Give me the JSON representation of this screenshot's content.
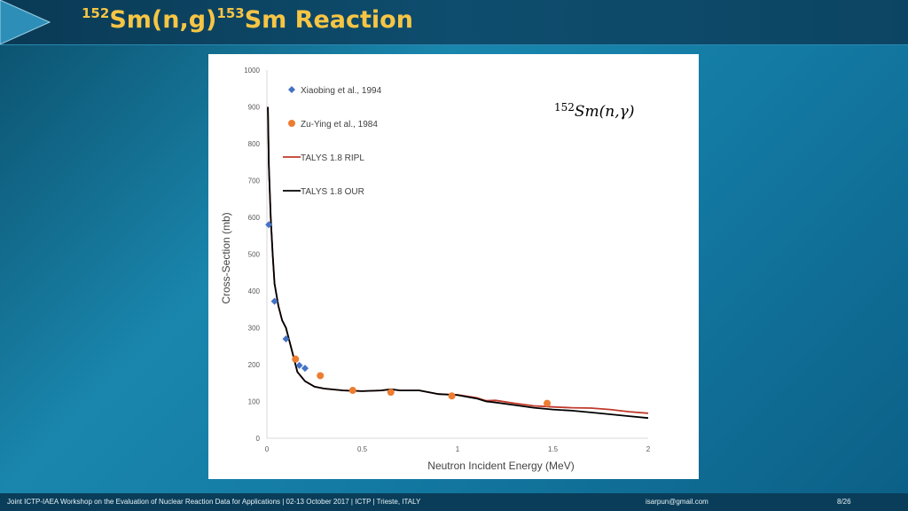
{
  "slide": {
    "title": {
      "pre_sup": "152",
      "part1": "Sm(n,g)",
      "mid_sup": "153",
      "part2": "Sm Reaction"
    },
    "footer": {
      "left": "Joint ICTP-IAEA Workshop on the Evaluation of Nuclear Reaction Data for Applications |   02-13 October 2017   |   ICTP   |   Trieste, ITALY",
      "email": "isarpun@gmail.com",
      "page": "8/26"
    },
    "colors": {
      "title": "#f6c544",
      "accent": "#1a86ad"
    }
  },
  "chart_data": {
    "type": "scatter",
    "title": "",
    "annotation": {
      "sup": "152",
      "text": "Sm(n,γ)"
    },
    "xlabel": "Neutron Incident Energy (MeV)",
    "ylabel": "Cross-Section (mb)",
    "xlim": [
      0,
      2
    ],
    "ylim": [
      0,
      1000
    ],
    "xticks": [
      "0",
      "0.5",
      "1",
      "1.5",
      "2"
    ],
    "yticks": [
      "0",
      "100",
      "200",
      "300",
      "400",
      "500",
      "600",
      "700",
      "800",
      "900",
      "1000"
    ],
    "grid": false,
    "legend": "top-left",
    "series": [
      {
        "name": "Xiaobing et al., 1994",
        "kind": "marker",
        "marker": "diamond",
        "color": "#4472c4",
        "x": [
          0.01,
          0.04,
          0.1,
          0.17,
          0.2
        ],
        "y": [
          580,
          372,
          270,
          198,
          190
        ]
      },
      {
        "name": "Zu-Ying et al., 1984",
        "kind": "marker",
        "marker": "circle",
        "color": "#ed7d31",
        "x": [
          0.15,
          0.28,
          0.45,
          0.65,
          0.97,
          1.47
        ],
        "y": [
          215,
          170,
          130,
          125,
          115,
          95
        ]
      },
      {
        "name": "TALYS 1.8 RIPL",
        "kind": "line",
        "color": "#c0392b",
        "x": [
          0.005,
          0.01,
          0.02,
          0.03,
          0.04,
          0.06,
          0.08,
          0.1,
          0.13,
          0.16,
          0.2,
          0.25,
          0.3,
          0.4,
          0.5,
          0.6,
          0.65,
          0.7,
          0.8,
          0.9,
          1.0,
          1.1,
          1.15,
          1.2,
          1.3,
          1.4,
          1.5,
          1.6,
          1.7,
          1.8,
          1.9,
          2.0
        ],
        "y": [
          900,
          740,
          600,
          500,
          420,
          360,
          320,
          300,
          240,
          180,
          155,
          140,
          135,
          130,
          128,
          130,
          133,
          130,
          130,
          120,
          118,
          110,
          102,
          103,
          95,
          88,
          85,
          83,
          82,
          78,
          72,
          68
        ]
      },
      {
        "name": "TALYS 1.8 OUR",
        "kind": "line",
        "color": "#000000",
        "x": [
          0.005,
          0.01,
          0.02,
          0.03,
          0.04,
          0.06,
          0.08,
          0.1,
          0.13,
          0.16,
          0.2,
          0.25,
          0.3,
          0.4,
          0.5,
          0.6,
          0.65,
          0.7,
          0.8,
          0.9,
          1.0,
          1.1,
          1.15,
          1.2,
          1.3,
          1.4,
          1.5,
          1.6,
          1.7,
          1.8,
          1.9,
          2.0
        ],
        "y": [
          900,
          740,
          600,
          500,
          420,
          360,
          320,
          300,
          240,
          180,
          155,
          140,
          135,
          130,
          128,
          130,
          133,
          130,
          130,
          120,
          117,
          108,
          100,
          97,
          90,
          83,
          78,
          75,
          70,
          65,
          60,
          55
        ]
      }
    ]
  }
}
